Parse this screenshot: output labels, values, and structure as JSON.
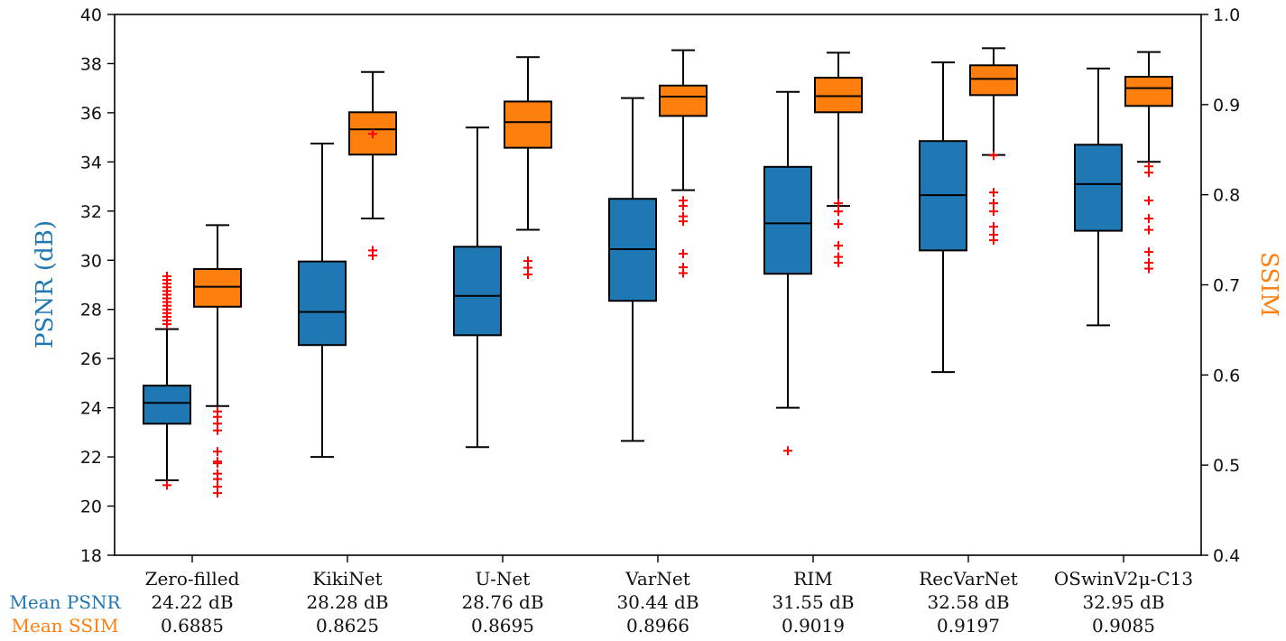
{
  "chart_data": {
    "type": "box",
    "title": "",
    "ylabel_left": "PSNR (dB)",
    "ylabel_right": "SSIM",
    "ylim_left": [
      18,
      40
    ],
    "ylim_right": [
      0.4,
      1.0
    ],
    "yticks_left": [
      "18",
      "20",
      "22",
      "24",
      "26",
      "28",
      "30",
      "32",
      "34",
      "36",
      "38",
      "40"
    ],
    "yticks_right": [
      "0.4",
      "0.5",
      "0.6",
      "0.7",
      "0.8",
      "0.9",
      "1.0"
    ],
    "row_labels": {
      "psnr": "Mean PSNR",
      "ssim": "Mean SSIM"
    },
    "colors": {
      "psnr": "#1f77b4",
      "ssim": "#ff7f0e",
      "outlier": "#ff0000",
      "axis_psnr_label": "#1f77b4",
      "axis_ssim_label": "#ff7f0e"
    },
    "categories": [
      {
        "name": "Zero-filled",
        "mean_psnr": "24.22 dB",
        "mean_ssim": "0.6885"
      },
      {
        "name": "KikiNet",
        "mean_psnr": "28.28 dB",
        "mean_ssim": "0.8625"
      },
      {
        "name": "U-Net",
        "mean_psnr": "28.76 dB",
        "mean_ssim": "0.8695"
      },
      {
        "name": "VarNet",
        "mean_psnr": "30.44 dB",
        "mean_ssim": "0.8966"
      },
      {
        "name": "RIM",
        "mean_psnr": "31.55 dB",
        "mean_ssim": "0.9019"
      },
      {
        "name": "RecVarNet",
        "mean_psnr": "32.58 dB",
        "mean_ssim": "0.9197"
      },
      {
        "name": "OSwinV2μ-C13",
        "mean_psnr": "32.95 dB",
        "mean_ssim": "0.9085"
      }
    ],
    "series": [
      {
        "key": "psnr",
        "axis": "left",
        "boxes": [
          {
            "whislo": 21.05,
            "q1": 23.35,
            "med": 24.2,
            "q3": 24.9,
            "whishi": 27.2,
            "fliers": [
              20.85,
              27.4,
              27.55,
              27.7,
              27.85,
              28.0,
              28.15,
              28.3,
              28.45,
              28.6,
              28.75,
              28.9,
              29.05,
              29.2,
              29.35
            ]
          },
          {
            "whislo": 22.0,
            "q1": 26.55,
            "med": 27.9,
            "q3": 29.95,
            "whishi": 34.75,
            "fliers": []
          },
          {
            "whislo": 22.4,
            "q1": 26.95,
            "med": 28.55,
            "q3": 30.55,
            "whishi": 35.4,
            "fliers": []
          },
          {
            "whislo": 22.65,
            "q1": 28.35,
            "med": 30.45,
            "q3": 32.5,
            "whishi": 36.6,
            "fliers": []
          },
          {
            "whislo": 24.0,
            "q1": 29.45,
            "med": 31.5,
            "q3": 33.8,
            "whishi": 36.85,
            "fliers": [
              22.25
            ]
          },
          {
            "whislo": 25.45,
            "q1": 30.4,
            "med": 32.65,
            "q3": 34.85,
            "whishi": 38.05,
            "fliers": []
          },
          {
            "whislo": 27.35,
            "q1": 31.2,
            "med": 33.1,
            "q3": 34.7,
            "whishi": 37.8,
            "fliers": []
          }
        ]
      },
      {
        "key": "ssim",
        "axis": "right",
        "boxes": [
          {
            "whislo": 0.5655,
            "q1": 0.6757,
            "med": 0.6979,
            "q3": 0.7175,
            "whishi": 0.7662,
            "fliers": [
              0.469,
              0.476,
              0.4845,
              0.4905,
              0.502,
              0.504,
              0.515,
              0.5385,
              0.546,
              0.5535,
              0.5595
            ]
          },
          {
            "whislo": 0.7736,
            "q1": 0.8445,
            "med": 0.8725,
            "q3": 0.8915,
            "whishi": 0.9361,
            "fliers": [
              0.7325,
              0.7382,
              0.8675
            ]
          },
          {
            "whislo": 0.7611,
            "q1": 0.8521,
            "med": 0.8806,
            "q3": 0.9034,
            "whishi": 0.9527,
            "fliers": [
              0.7115,
              0.719,
              0.7265
            ]
          },
          {
            "whislo": 0.8051,
            "q1": 0.8874,
            "med": 0.9088,
            "q3": 0.9211,
            "whishi": 0.9603,
            "fliers": [
              0.713,
              0.7195,
              0.7345,
              0.7705,
              0.776,
              0.7875,
              0.7935
            ]
          },
          {
            "whislo": 0.7875,
            "q1": 0.8915,
            "med": 0.9094,
            "q3": 0.9298,
            "whishi": 0.9575,
            "fliers": [
              0.7245,
              0.731,
              0.7435,
              0.7675,
              0.7815,
              0.7905
            ]
          },
          {
            "whislo": 0.8441,
            "q1": 0.9105,
            "med": 0.9285,
            "q3": 0.9436,
            "whishi": 0.9626,
            "fliers": [
              0.7495,
              0.7555,
              0.7645,
              0.7815,
              0.7905,
              0.8025,
              0.8435
            ]
          },
          {
            "whislo": 0.8365,
            "q1": 0.8985,
            "med": 0.9182,
            "q3": 0.9309,
            "whishi": 0.9583,
            "fliers": [
              0.718,
              0.7245,
              0.7365,
              0.761,
              0.7735,
              0.7935,
              0.8245,
              0.8315
            ]
          }
        ]
      }
    ]
  }
}
